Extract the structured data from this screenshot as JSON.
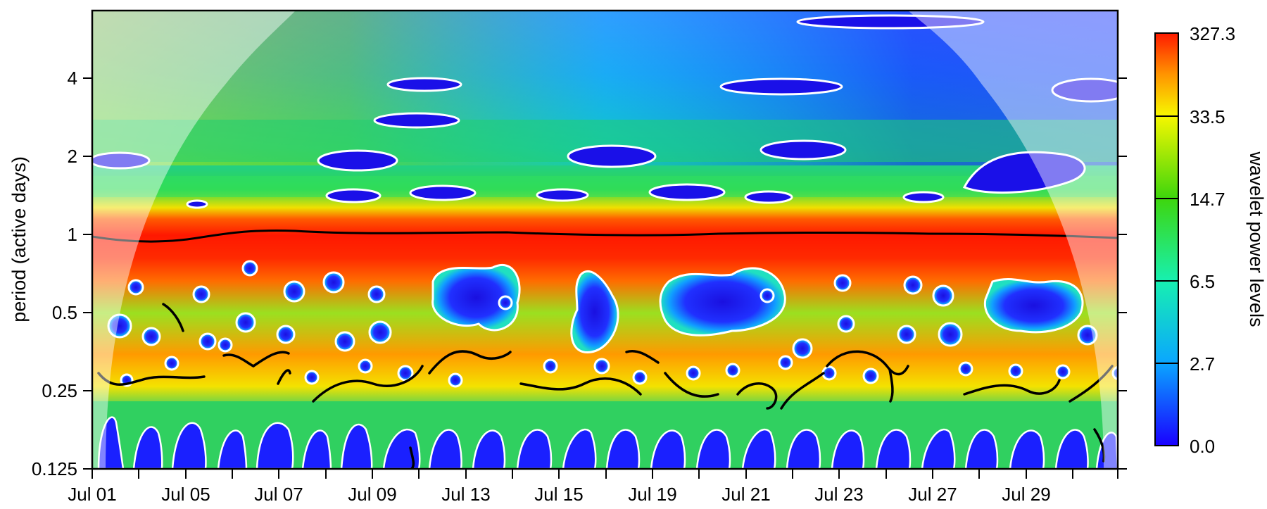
{
  "chart_data": {
    "type": "heatmap",
    "title": "",
    "xlabel": "",
    "ylabel": "period (active days)",
    "x_ticks": [
      "Jul 01",
      "Jul 05",
      "Jul 07",
      "Jul 09",
      "Jul 13",
      "Jul 15",
      "Jul 19",
      "Jul 21",
      "Jul 23",
      "Jul 27",
      "Jul 29"
    ],
    "y_ticks": [
      "4",
      "2",
      "1",
      "0.5",
      "0.25",
      "0.125"
    ],
    "y_scale": "log2",
    "ylim": [
      0.125,
      6.5
    ],
    "legend": {
      "title": "wavelet power levels",
      "levels": [
        "0.0",
        "2.7",
        "6.5",
        "14.7",
        "33.5",
        "327.3"
      ],
      "colors": [
        "#1a00ff",
        "#0aa6ff",
        "#17f0b0",
        "#3ed60c",
        "#f7f700",
        "#ff9400",
        "#ff1a00"
      ],
      "placement": "right"
    },
    "ridge_period": 1,
    "cone_of_influence": true,
    "significance_contours": "white",
    "ridge_lines": "black"
  }
}
